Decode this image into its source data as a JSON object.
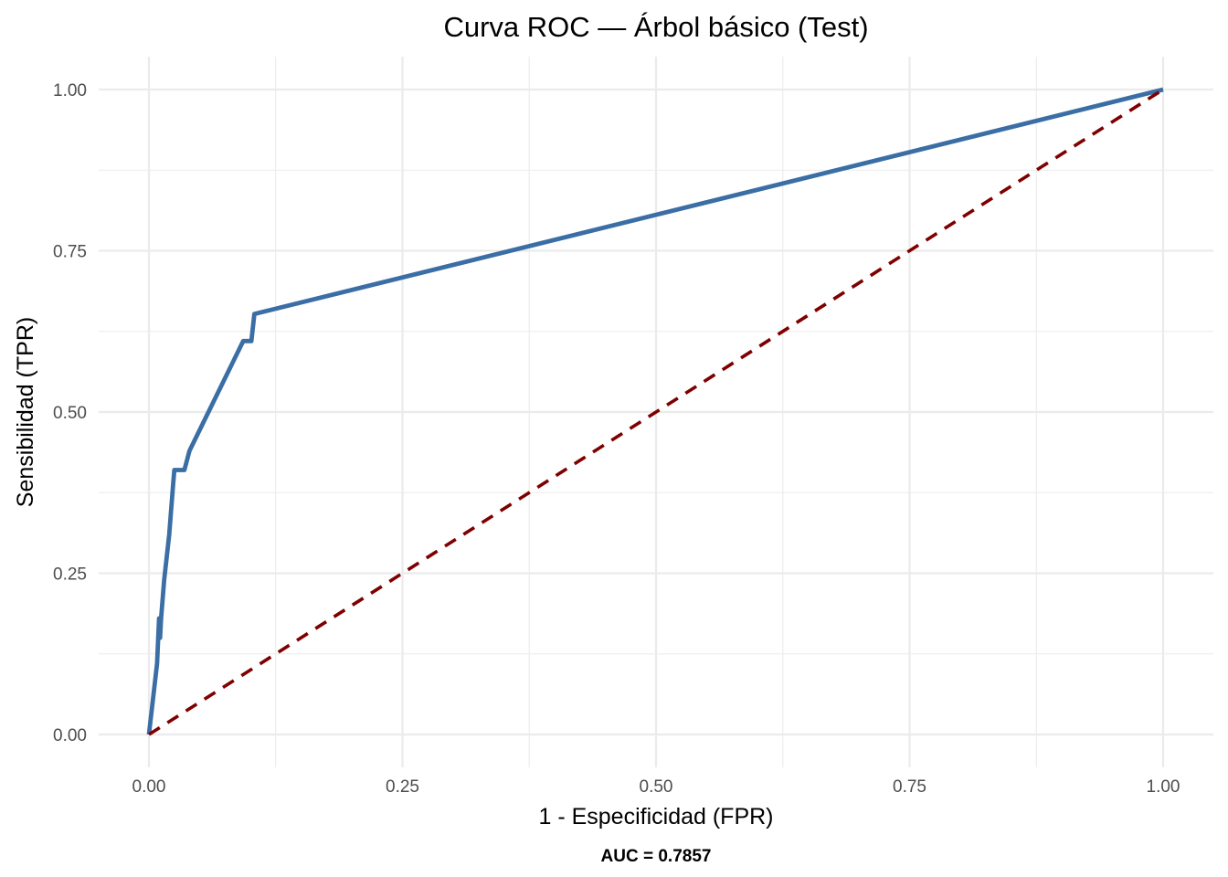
{
  "chart_data": {
    "type": "line",
    "title": "Curva ROC — Árbol básico (Test)",
    "xlabel": "1 - Especificidad (FPR)",
    "ylabel": "Sensibilidad (TPR)",
    "caption": "AUC = 0.7857",
    "xlim": [
      0,
      1
    ],
    "ylim": [
      0,
      1
    ],
    "x_ticks": [
      "0.00",
      "0.25",
      "0.50",
      "0.75",
      "1.00"
    ],
    "y_ticks": [
      "0.00",
      "0.25",
      "0.50",
      "0.75",
      "1.00"
    ],
    "grid": true,
    "series": [
      {
        "color": "#3a6ea5",
        "style": "solid",
        "points": [
          [
            0.0,
            0.0
          ],
          [
            0.008,
            0.11
          ],
          [
            0.01,
            0.18
          ],
          [
            0.011,
            0.15
          ],
          [
            0.012,
            0.18
          ],
          [
            0.015,
            0.24
          ],
          [
            0.02,
            0.31
          ],
          [
            0.024,
            0.39
          ],
          [
            0.025,
            0.41
          ],
          [
            0.035,
            0.41
          ],
          [
            0.04,
            0.44
          ],
          [
            0.093,
            0.61
          ],
          [
            0.101,
            0.61
          ],
          [
            0.104,
            0.652
          ],
          [
            1.0,
            1.0
          ]
        ]
      },
      {
        "color": "#7f0000",
        "style": "dashed",
        "points": [
          [
            0.0,
            0.0
          ],
          [
            1.0,
            1.0
          ]
        ]
      }
    ]
  }
}
